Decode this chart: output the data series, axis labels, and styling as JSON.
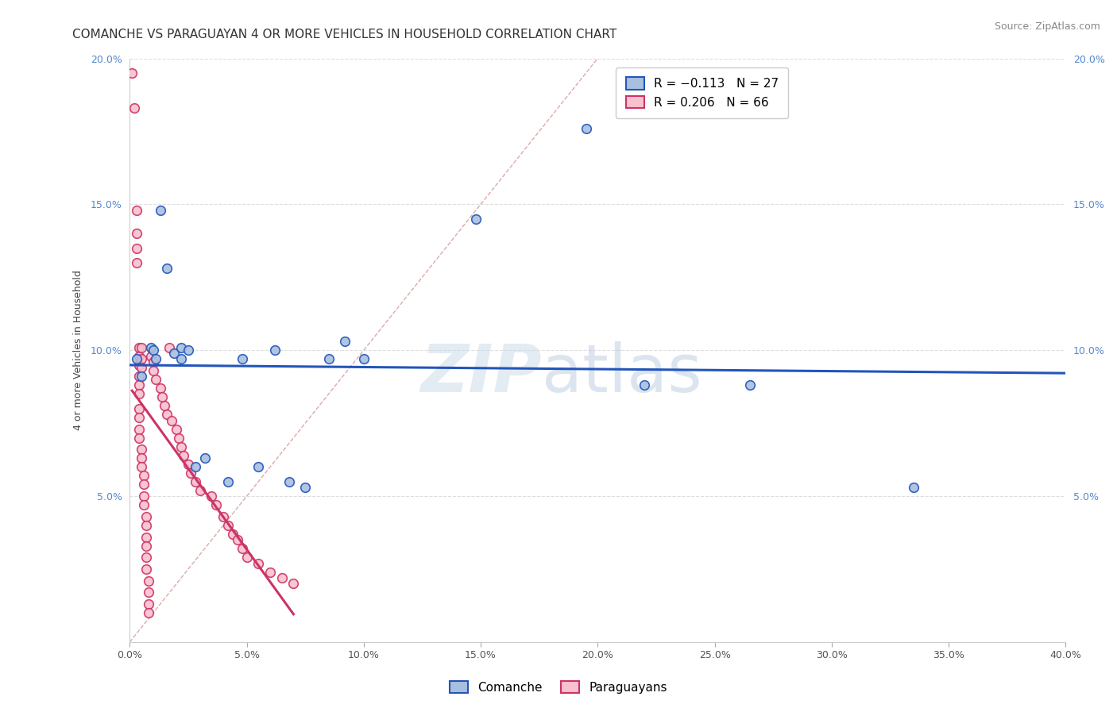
{
  "title": "COMANCHE VS PARAGUAYAN 4 OR MORE VEHICLES IN HOUSEHOLD CORRELATION CHART",
  "source": "Source: ZipAtlas.com",
  "ylabel": "4 or more Vehicles in Household",
  "xlim": [
    0.0,
    0.4
  ],
  "ylim": [
    0.0,
    0.2
  ],
  "xticks": [
    0.0,
    0.05,
    0.1,
    0.15,
    0.2,
    0.25,
    0.3,
    0.35,
    0.4
  ],
  "xticklabels": [
    "0.0%",
    "5.0%",
    "10.0%",
    "15.0%",
    "20.0%",
    "25.0%",
    "30.0%",
    "35.0%",
    "40.0%"
  ],
  "yticks": [
    0.0,
    0.05,
    0.1,
    0.15,
    0.2
  ],
  "yticklabels_left": [
    "",
    "5.0%",
    "10.0%",
    "15.0%",
    "20.0%"
  ],
  "yticklabels_right": [
    "",
    "5.0%",
    "10.0%",
    "15.0%",
    "20.0%"
  ],
  "comanche_color": "#a8bfde",
  "paraguayan_color": "#f9c0ce",
  "comanche_line_color": "#2255bb",
  "paraguayan_line_color": "#cc3366",
  "diagonal_line_color": "#ddaaaa",
  "watermark_zip": "ZIP",
  "watermark_atlas": "atlas",
  "background_color": "#ffffff",
  "grid_color": "#dddddd",
  "title_fontsize": 11,
  "axis_label_fontsize": 9,
  "tick_fontsize": 9,
  "legend_fontsize": 11,
  "source_fontsize": 9,
  "marker_size": 70,
  "marker_linewidth": 1.2,
  "comanche_points": [
    [
      0.003,
      0.097
    ],
    [
      0.005,
      0.091
    ],
    [
      0.009,
      0.101
    ],
    [
      0.01,
      0.1
    ],
    [
      0.011,
      0.097
    ],
    [
      0.013,
      0.148
    ],
    [
      0.016,
      0.128
    ],
    [
      0.019,
      0.099
    ],
    [
      0.022,
      0.097
    ],
    [
      0.022,
      0.101
    ],
    [
      0.025,
      0.1
    ],
    [
      0.028,
      0.06
    ],
    [
      0.032,
      0.063
    ],
    [
      0.042,
      0.055
    ],
    [
      0.048,
      0.097
    ],
    [
      0.055,
      0.06
    ],
    [
      0.062,
      0.1
    ],
    [
      0.068,
      0.055
    ],
    [
      0.075,
      0.053
    ],
    [
      0.085,
      0.097
    ],
    [
      0.092,
      0.103
    ],
    [
      0.1,
      0.097
    ],
    [
      0.148,
      0.145
    ],
    [
      0.195,
      0.176
    ],
    [
      0.22,
      0.088
    ],
    [
      0.265,
      0.088
    ],
    [
      0.335,
      0.053
    ]
  ],
  "paraguayan_points": [
    [
      0.001,
      0.195
    ],
    [
      0.002,
      0.183
    ],
    [
      0.003,
      0.148
    ],
    [
      0.003,
      0.14
    ],
    [
      0.003,
      0.135
    ],
    [
      0.003,
      0.13
    ],
    [
      0.004,
      0.101
    ],
    [
      0.004,
      0.098
    ],
    [
      0.004,
      0.095
    ],
    [
      0.004,
      0.091
    ],
    [
      0.004,
      0.088
    ],
    [
      0.004,
      0.085
    ],
    [
      0.004,
      0.08
    ],
    [
      0.004,
      0.077
    ],
    [
      0.004,
      0.073
    ],
    [
      0.004,
      0.07
    ],
    [
      0.005,
      0.101
    ],
    [
      0.005,
      0.097
    ],
    [
      0.005,
      0.094
    ],
    [
      0.005,
      0.066
    ],
    [
      0.005,
      0.063
    ],
    [
      0.005,
      0.06
    ],
    [
      0.006,
      0.057
    ],
    [
      0.006,
      0.054
    ],
    [
      0.006,
      0.05
    ],
    [
      0.006,
      0.047
    ],
    [
      0.007,
      0.043
    ],
    [
      0.007,
      0.04
    ],
    [
      0.007,
      0.036
    ],
    [
      0.007,
      0.033
    ],
    [
      0.007,
      0.029
    ],
    [
      0.007,
      0.025
    ],
    [
      0.008,
      0.021
    ],
    [
      0.008,
      0.017
    ],
    [
      0.008,
      0.013
    ],
    [
      0.008,
      0.01
    ],
    [
      0.009,
      0.098
    ],
    [
      0.01,
      0.096
    ],
    [
      0.01,
      0.093
    ],
    [
      0.011,
      0.09
    ],
    [
      0.013,
      0.087
    ],
    [
      0.014,
      0.084
    ],
    [
      0.015,
      0.081
    ],
    [
      0.016,
      0.078
    ],
    [
      0.017,
      0.101
    ],
    [
      0.018,
      0.076
    ],
    [
      0.02,
      0.073
    ],
    [
      0.021,
      0.07
    ],
    [
      0.022,
      0.067
    ],
    [
      0.023,
      0.064
    ],
    [
      0.025,
      0.061
    ],
    [
      0.026,
      0.058
    ],
    [
      0.028,
      0.055
    ],
    [
      0.03,
      0.052
    ],
    [
      0.035,
      0.05
    ],
    [
      0.037,
      0.047
    ],
    [
      0.04,
      0.043
    ],
    [
      0.042,
      0.04
    ],
    [
      0.044,
      0.037
    ],
    [
      0.046,
      0.035
    ],
    [
      0.048,
      0.032
    ],
    [
      0.05,
      0.029
    ],
    [
      0.055,
      0.027
    ],
    [
      0.06,
      0.024
    ],
    [
      0.065,
      0.022
    ],
    [
      0.07,
      0.02
    ]
  ]
}
